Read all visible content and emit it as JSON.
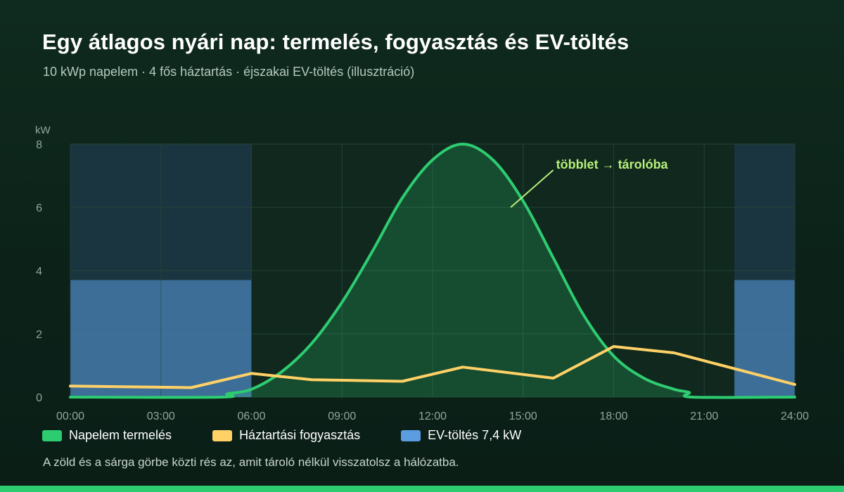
{
  "header": {
    "title": "Egy átlagos nyári nap: termelés, fogyasztás és EV-töltés",
    "subtitle": "10 kWp napelem · 4 fős háztartás · éjszakai EV-töltés (illusztráció)"
  },
  "chart_data": {
    "type": "area",
    "ylabel": "kW",
    "ylim": [
      0,
      8
    ],
    "yticks": [
      "0",
      "2",
      "4",
      "6",
      "8"
    ],
    "xlim": [
      0,
      24
    ],
    "xticks": [
      "00:00",
      "03:00",
      "06:00",
      "09:00",
      "12:00",
      "15:00",
      "18:00",
      "21:00",
      "24:00"
    ],
    "grid": true,
    "annotation": {
      "text": "többlet → tárolóba",
      "x": 14.6,
      "y": 6.0
    },
    "series": [
      {
        "name": "Napelem termelés",
        "kind": "area",
        "color": "#2ecc71",
        "x": [
          0,
          5,
          5.2,
          6,
          7,
          8,
          9,
          10,
          11,
          12,
          13,
          14,
          15,
          16,
          17,
          18,
          19,
          20,
          20.5,
          20.6,
          24
        ],
        "y": [
          0,
          0,
          0.1,
          0.25,
          0.8,
          1.7,
          3.0,
          4.6,
          6.3,
          7.5,
          8.0,
          7.5,
          6.2,
          4.4,
          2.6,
          1.3,
          0.6,
          0.25,
          0.15,
          0,
          0
        ]
      },
      {
        "name": "Háztartási fogyasztás",
        "kind": "line",
        "color": "#ffd166",
        "x": [
          0,
          4,
          6,
          8,
          11,
          13,
          16,
          18,
          20,
          24
        ],
        "y": [
          0.35,
          0.3,
          0.75,
          0.55,
          0.5,
          0.95,
          0.6,
          1.6,
          1.4,
          0.4
        ]
      },
      {
        "name": "EV-töltés 7,4 kW",
        "kind": "bands",
        "color": "#5b9de0",
        "value": 3.7,
        "ranges": [
          [
            0,
            6
          ],
          [
            22,
            24
          ]
        ]
      }
    ]
  },
  "legend": {
    "items": [
      {
        "label": "Napelem termelés",
        "color": "#2ecc71"
      },
      {
        "label": "Háztartási fogyasztás",
        "color": "#ffd166"
      },
      {
        "label": "EV-töltés 7,4 kW",
        "color": "#5b9de0"
      }
    ]
  },
  "footnote": "A zöld és a sárga görbe közti rés az, amit tároló nélkül visszatolsz a hálózatba."
}
